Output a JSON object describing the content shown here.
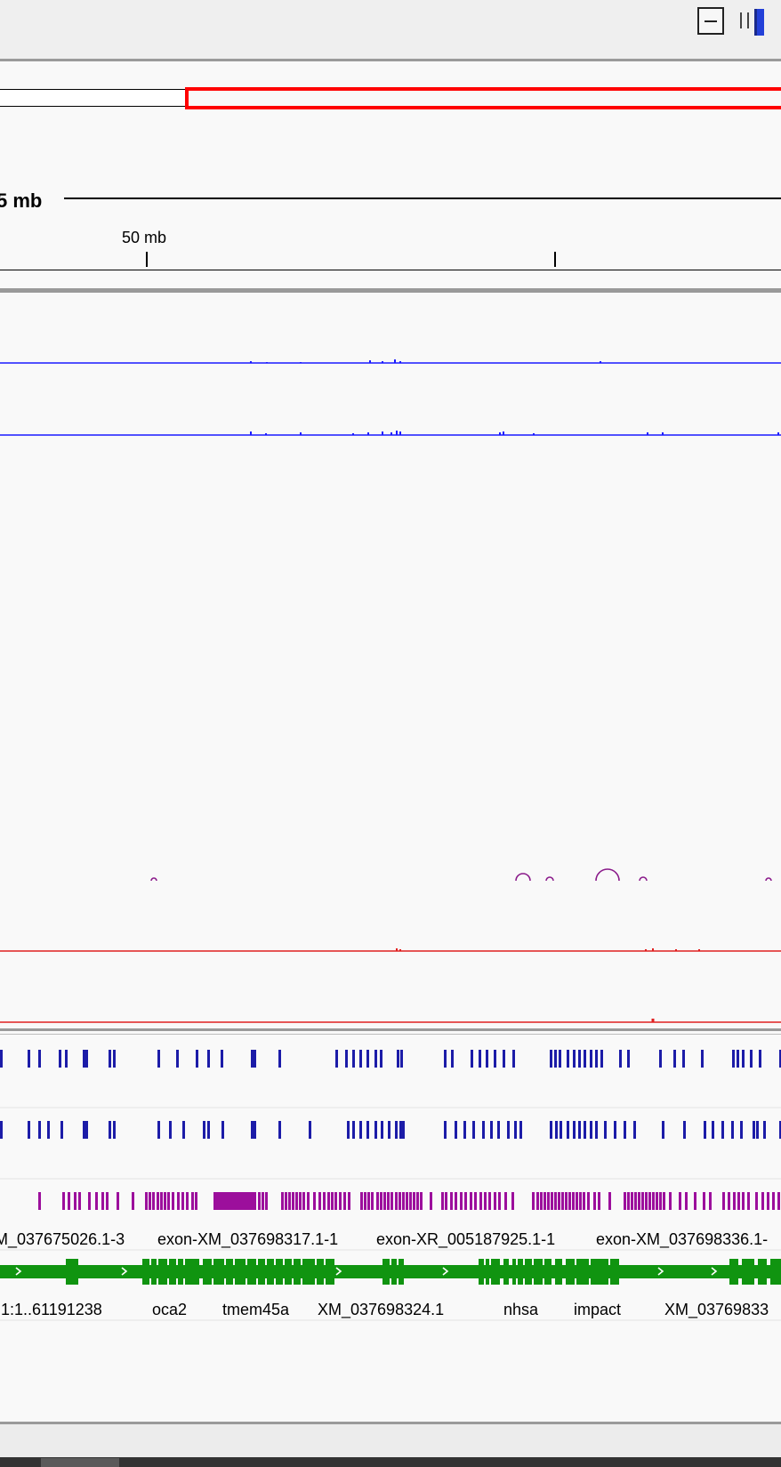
{
  "toolbar": {
    "collapse_icon": "minus-box-icon",
    "zoom_icon": "zoom-slider-icon"
  },
  "ruler": {
    "span_label": "5 mb",
    "tick_label": "50 mb"
  },
  "tracks": {
    "exon_labels": [
      "M_037675026.1-3",
      "exon-XM_037698317.1-1",
      "exon-XR_005187925.1-1",
      "exon-XM_037698336.1-"
    ],
    "gene_labels": [
      ".1:1..61191238",
      "oca2",
      "tmem45a",
      "XM_037698324.1",
      "nhsa",
      "impact",
      "XM_03769833"
    ]
  },
  "colors": {
    "region_box": "#ff0000",
    "blue_signal": "#1a1aff",
    "feature_blue": "#1c1ca8",
    "feature_purple": "#9c0f9c",
    "gene_green": "#109410",
    "red_signal": "#e02020",
    "arc": "#8a1a8a"
  }
}
